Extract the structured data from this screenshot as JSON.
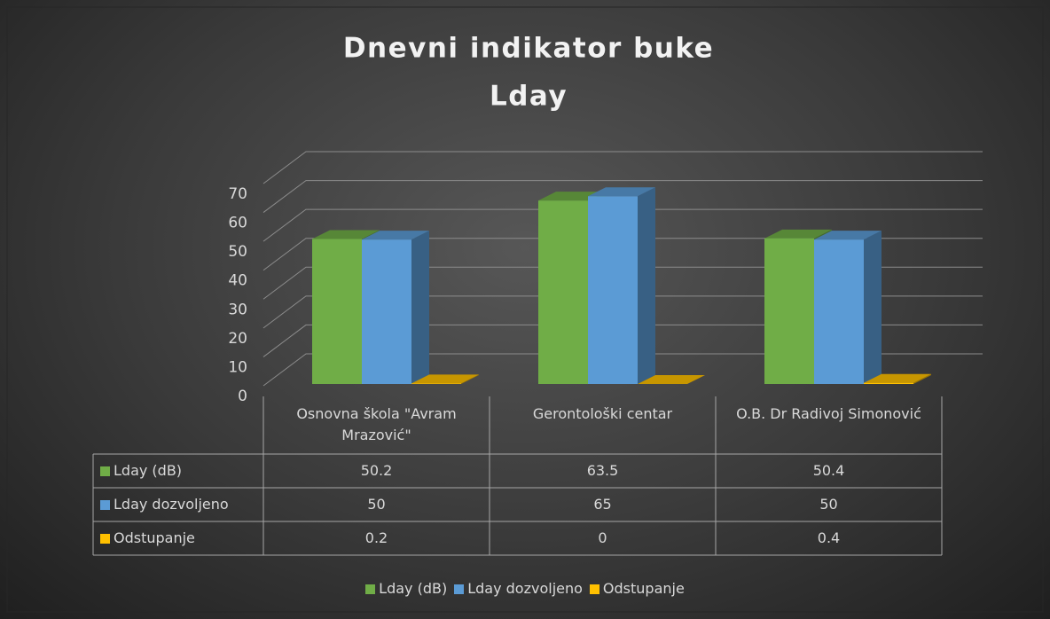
{
  "chart_data": {
    "type": "bar3d",
    "title": "Dnevni indikator buke",
    "subtitle": "Lday",
    "categories": [
      "Osnovna škola \"Avram Mrazović\"",
      "Gerontološki centar",
      "O.B. Dr Radivoj Simonović"
    ],
    "series": [
      {
        "name": "Lday (dB)",
        "color": "#70ad47",
        "values": [
          50.2,
          63.5,
          50.4
        ]
      },
      {
        "name": "Lday dozvoljeno",
        "color": "#5b9bd5",
        "values": [
          50,
          65,
          50
        ]
      },
      {
        "name": "Odstupanje",
        "color": "#ffc000",
        "values": [
          0.2,
          0,
          0.4
        ]
      }
    ],
    "ylim": [
      0,
      70
    ],
    "yticks": [
      0,
      10,
      20,
      30,
      40,
      50,
      60,
      70
    ],
    "grid": true,
    "legend": "bottom",
    "data_table": true
  }
}
